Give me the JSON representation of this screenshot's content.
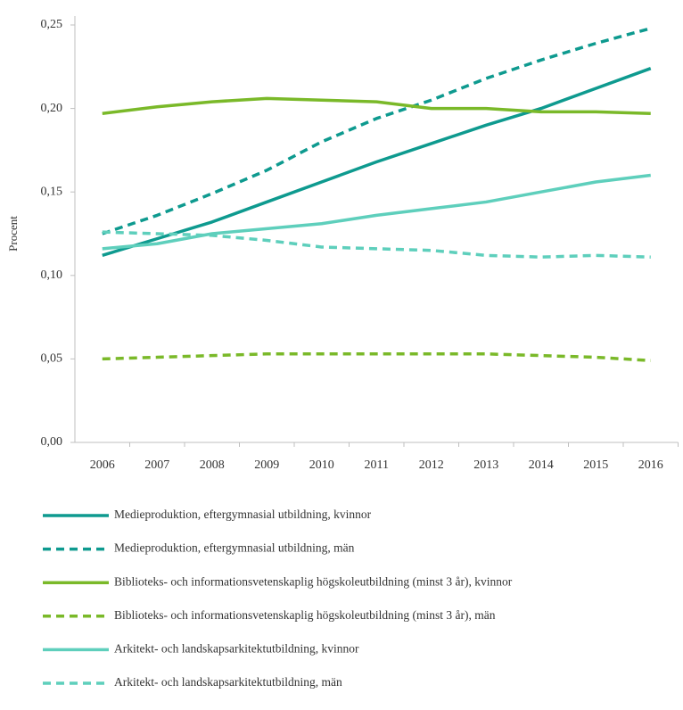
{
  "chart_data": {
    "type": "line",
    "y_label": "Procent",
    "categories": [
      "2006",
      "2007",
      "2008",
      "2009",
      "2010",
      "2011",
      "2012",
      "2013",
      "2014",
      "2015",
      "2016"
    ],
    "ylim": [
      0,
      0.25
    ],
    "yticks": [
      {
        "value": 0,
        "label": "0,00"
      },
      {
        "value": 0.05,
        "label": "0,05"
      },
      {
        "value": 0.1,
        "label": "0,10"
      },
      {
        "value": 0.15,
        "label": "0,15"
      },
      {
        "value": 0.2,
        "label": "0,20"
      },
      {
        "value": 0.25,
        "label": "0,25"
      }
    ],
    "grid": false,
    "series": [
      {
        "name": "Medieproduktion, eftergymnasial utbildning, kvinnor",
        "color": "#0e9a8f",
        "dashed": false,
        "values": [
          0.112,
          0.122,
          0.132,
          0.144,
          0.156,
          0.168,
          0.179,
          0.19,
          0.2,
          0.212,
          0.224
        ]
      },
      {
        "name": "Medieproduktion, eftergymnasial utbildning, män",
        "color": "#0e9a8f",
        "dashed": true,
        "values": [
          0.125,
          0.136,
          0.149,
          0.163,
          0.18,
          0.194,
          0.205,
          0.218,
          0.229,
          0.239,
          0.248
        ]
      },
      {
        "name": "Biblioteks- och informationsvetenskaplig högskoleutbildning (minst 3 år), kvinnor",
        "color": "#7ab929",
        "dashed": false,
        "values": [
          0.197,
          0.201,
          0.204,
          0.206,
          0.205,
          0.204,
          0.2,
          0.2,
          0.198,
          0.198,
          0.197
        ]
      },
      {
        "name": "Biblioteks- och informationsvetenskaplig högskoleutbildning (minst 3 år), män",
        "color": "#7ab929",
        "dashed": true,
        "values": [
          0.05,
          0.051,
          0.052,
          0.053,
          0.053,
          0.053,
          0.053,
          0.053,
          0.052,
          0.051,
          0.049
        ]
      },
      {
        "name": "Arkitekt- och landskapsarkitektutbildning, kvinnor",
        "color": "#5ecfbc",
        "dashed": false,
        "values": [
          0.116,
          0.119,
          0.125,
          0.128,
          0.131,
          0.136,
          0.14,
          0.144,
          0.15,
          0.156,
          0.16
        ]
      },
      {
        "name": "Arkitekt- och landskapsarkitektutbildning, män",
        "color": "#5ecfbc",
        "dashed": true,
        "values": [
          0.126,
          0.125,
          0.124,
          0.121,
          0.117,
          0.116,
          0.115,
          0.112,
          0.111,
          0.112,
          0.111
        ]
      }
    ]
  }
}
